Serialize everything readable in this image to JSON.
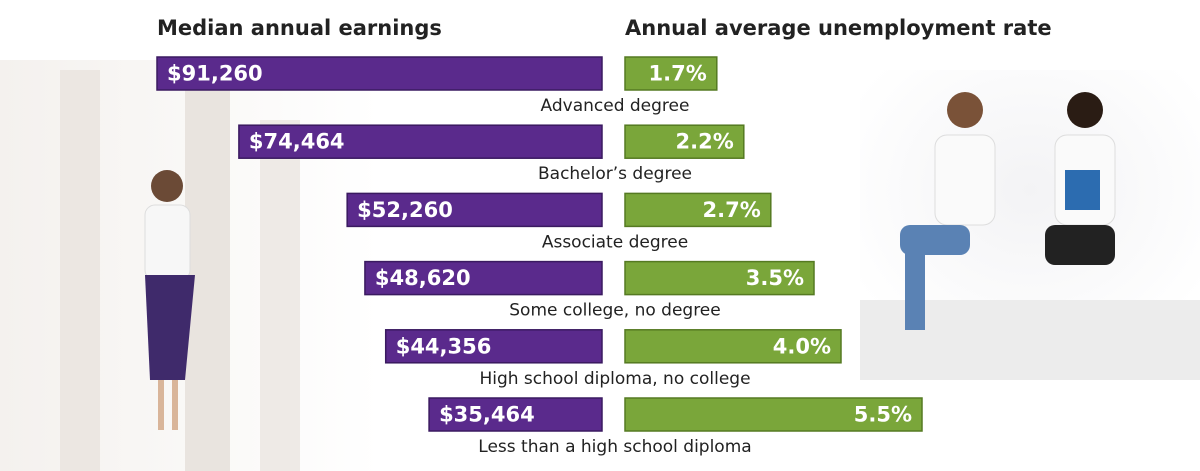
{
  "chart_data": [
    {
      "type": "bar",
      "title": "Median annual earnings",
      "categories": [
        "Advanced degree",
        "Bachelor’s degree",
        "Associate degree",
        "Some college, no degree",
        "High school diploma, no college",
        "Less than a high school diploma"
      ],
      "values": [
        91260,
        74464,
        52260,
        48620,
        44356,
        35464
      ],
      "value_labels": [
        "$91,260",
        "$74,464",
        "$52,260",
        "$48,620",
        "$44,356",
        "$35,464"
      ],
      "color": "#5a2a8c"
    },
    {
      "type": "bar",
      "title": "Annual average unemployment rate",
      "values": [
        1.7,
        2.2,
        2.7,
        3.5,
        4.0,
        5.5
      ],
      "value_labels": [
        "1.7%",
        "2.2%",
        "2.7%",
        "3.5%",
        "4.0%",
        "5.5%"
      ],
      "color": "#7aa63a"
    }
  ]
}
